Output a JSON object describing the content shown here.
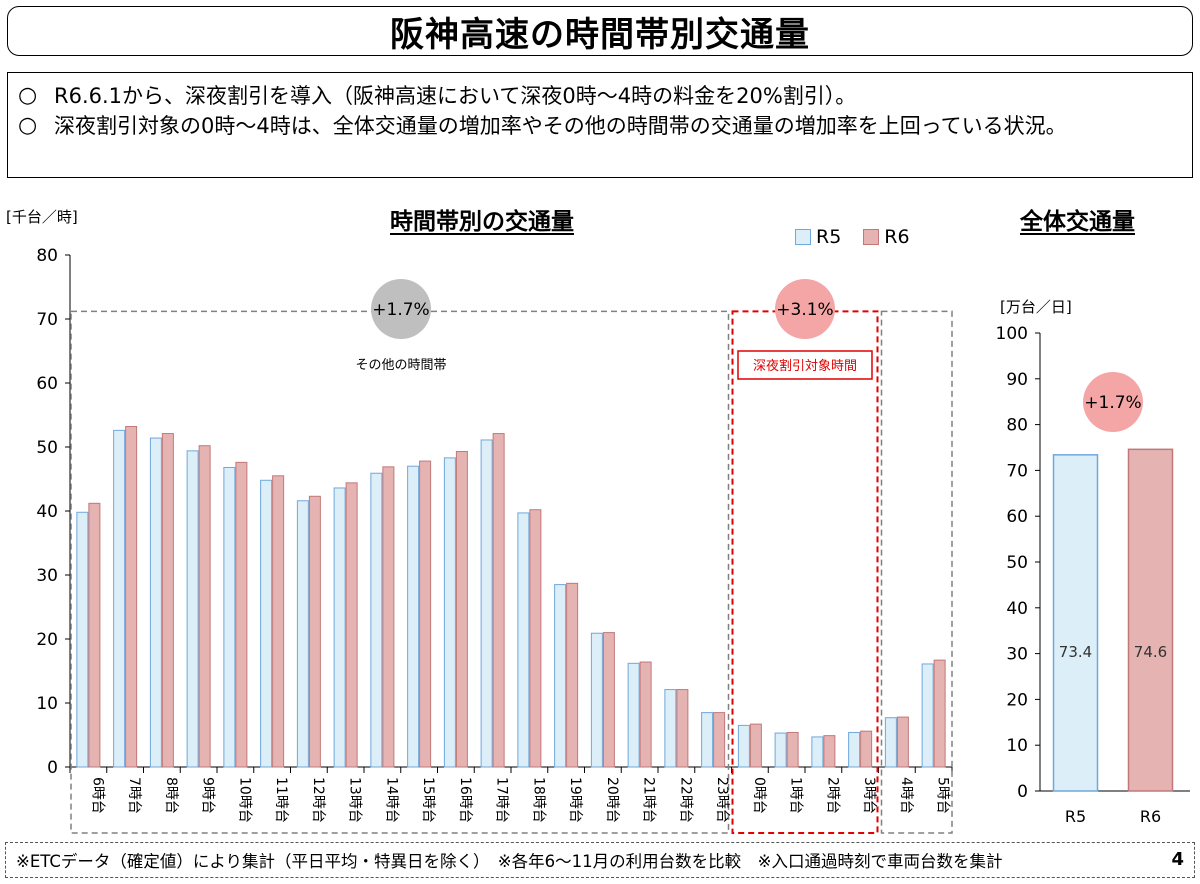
{
  "title": "阪神高速の時間帯別交通量",
  "summary": [
    "R6.6.1から、深夜割引を導入（阪神高速において深夜0時～4時の料金を20%割引）。",
    "深夜割引対象の0時～4時は、全体交通量の増加率やその他の時間帯の交通量の増加率を上回っている状況。"
  ],
  "bullet_symbol": "○",
  "main_chart_title": "時間帯別の交通量",
  "main_unit": "[千台／時]",
  "total_chart_title": "全体交通量",
  "total_unit": "[万台／日]",
  "legend": [
    "R5",
    "R6"
  ],
  "colors": {
    "r5_fill": "#DCEEF7",
    "r5_stroke": "#6FA8DC",
    "r6_fill": "#E6B3B3",
    "r6_stroke": "#C27878",
    "gray_badge": "#BFBFBF",
    "pink_badge": "#F4A6A6",
    "red_box": "#E00000",
    "gray_box": "#808080"
  },
  "annotations": {
    "other_period_rate": "+1.7%",
    "other_period_label": "その他の時間帯",
    "night_rate": "+3.1%",
    "night_label": "深夜割引対象時間",
    "total_rate": "+1.7%"
  },
  "footer": "※ETCデータ（確定値）により集計（平日平均・特異日を除く）　※各年6～11月の利用台数を比較　※入口通過時刻で車両台数を集計",
  "page_number": "4",
  "chart_data": [
    {
      "type": "bar",
      "title": "時間帯別の交通量",
      "ylabel": "[千台／時]",
      "ylim": [
        0,
        80
      ],
      "yticks": [
        0,
        10,
        20,
        30,
        40,
        50,
        60,
        70,
        80
      ],
      "categories": [
        "6時台",
        "7時台",
        "8時台",
        "9時台",
        "10時台",
        "11時台",
        "12時台",
        "13時台",
        "14時台",
        "15時台",
        "16時台",
        "17時台",
        "18時台",
        "19時台",
        "20時台",
        "21時台",
        "22時台",
        "23時台",
        "0時台",
        "1時台",
        "2時台",
        "3時台",
        "4時台",
        "5時台"
      ],
      "series": [
        {
          "name": "R5",
          "values": [
            39.8,
            52.6,
            51.4,
            49.4,
            46.8,
            44.8,
            41.6,
            43.6,
            45.9,
            47.0,
            48.3,
            51.1,
            39.7,
            28.5,
            20.9,
            16.2,
            12.1,
            8.5,
            6.5,
            5.3,
            4.7,
            5.4,
            7.7,
            16.1
          ]
        },
        {
          "name": "R6",
          "values": [
            41.2,
            53.2,
            52.1,
            50.2,
            47.6,
            45.5,
            42.3,
            44.4,
            46.9,
            47.8,
            49.3,
            52.1,
            40.2,
            28.7,
            21.0,
            16.4,
            12.1,
            8.5,
            6.7,
            5.4,
            4.9,
            5.6,
            7.8,
            16.7
          ]
        }
      ],
      "grid": false,
      "legend": "top-right"
    },
    {
      "type": "bar",
      "title": "全体交通量",
      "ylabel": "[万台／日]",
      "ylim": [
        0,
        100
      ],
      "yticks": [
        0,
        10,
        20,
        30,
        40,
        50,
        60,
        70,
        80,
        90,
        100
      ],
      "categories": [
        "R5",
        "R6"
      ],
      "values": [
        73.4,
        74.6
      ],
      "value_labels": [
        "73.4",
        "74.6"
      ],
      "grid": false
    }
  ]
}
